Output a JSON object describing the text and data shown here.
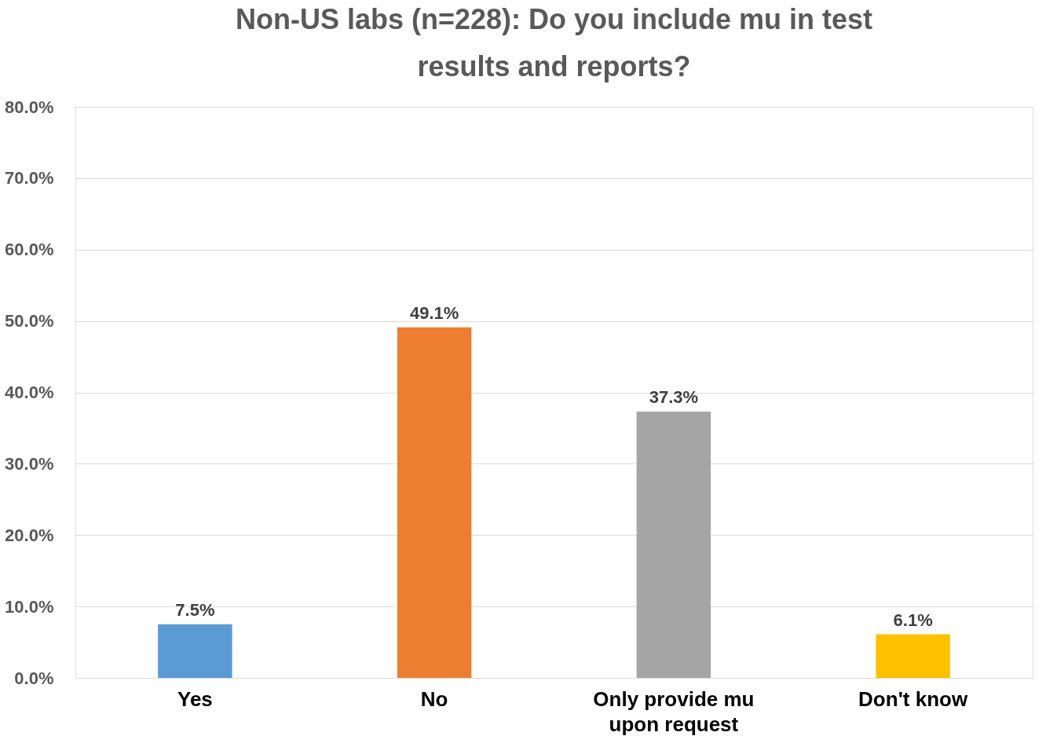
{
  "chart_data": {
    "type": "bar",
    "title": "Non-US labs (n=228): Do you include mu in test results and reports?",
    "categories": [
      "Yes",
      "No",
      "Only provide mu upon request",
      "Don't know"
    ],
    "values": [
      7.5,
      49.1,
      37.3,
      6.1
    ],
    "colors": [
      "#5b9bd5",
      "#ed7d31",
      "#a5a5a5",
      "#ffc000"
    ],
    "value_labels": [
      "7.5%",
      "49.1%",
      "37.3%",
      "6.1%"
    ],
    "ylim": [
      0,
      80
    ],
    "yticks": [
      {
        "value": 0,
        "label": "0.0%"
      },
      {
        "value": 10,
        "label": "10.0%"
      },
      {
        "value": 20,
        "label": "20.0%"
      },
      {
        "value": 30,
        "label": "30.0%"
      },
      {
        "value": 40,
        "label": "40.0%"
      },
      {
        "value": 50,
        "label": "50.0%"
      },
      {
        "value": 60,
        "label": "60.0%"
      },
      {
        "value": 70,
        "label": "70.0%"
      },
      {
        "value": 80,
        "label": "80.0%"
      }
    ],
    "grid": "y",
    "legend": false
  }
}
